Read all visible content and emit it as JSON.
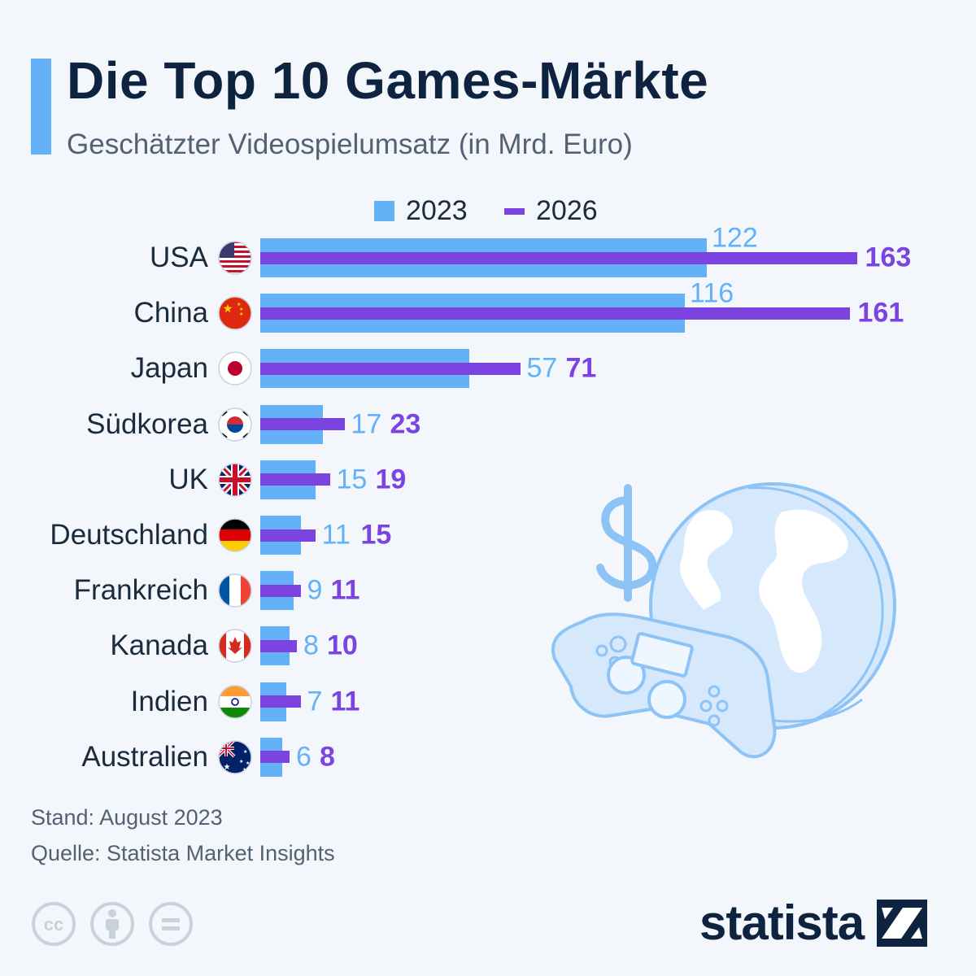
{
  "title": "Die Top 10 Games-Märkte",
  "subtitle": "Geschätzter Videospielumsatz (in Mrd. Euro)",
  "colors": {
    "series_2023": "#64b1f8",
    "series_2026": "#7b43e0",
    "title": "#0d2340",
    "accent": "#64b1f8"
  },
  "chart_data": {
    "type": "bar",
    "orientation": "horizontal",
    "title": "Die Top 10 Games-Märkte",
    "subtitle": "Geschätzter Videospielumsatz (in Mrd. Euro)",
    "categories": [
      "USA",
      "China",
      "Japan",
      "Südkorea",
      "UK",
      "Deutschland",
      "Frankreich",
      "Kanada",
      "Indien",
      "Australien"
    ],
    "flags": [
      "us-flag-icon",
      "china-flag-icon",
      "japan-flag-icon",
      "south-korea-flag-icon",
      "uk-flag-icon",
      "germany-flag-icon",
      "france-flag-icon",
      "canada-flag-icon",
      "india-flag-icon",
      "australia-flag-icon"
    ],
    "series": [
      {
        "name": "2023",
        "values": [
          122,
          116,
          57,
          17,
          15,
          11,
          9,
          8,
          7,
          6
        ],
        "color": "#64b1f8"
      },
      {
        "name": "2026",
        "values": [
          163,
          161,
          71,
          23,
          19,
          15,
          11,
          10,
          11,
          8
        ],
        "color": "#7b43e0"
      }
    ],
    "legend_position": "top",
    "grid": false,
    "data_labels": true,
    "xlabel": "",
    "ylabel": ""
  },
  "footer": {
    "stand": "Stand: August 2023",
    "source": "Quelle: Statista Market Insights",
    "brand": "statista"
  },
  "icons": [
    "cc-icon",
    "attribution-icon",
    "no-derivatives-icon",
    "statista-logo-icon",
    "globe-controller-illustration"
  ]
}
